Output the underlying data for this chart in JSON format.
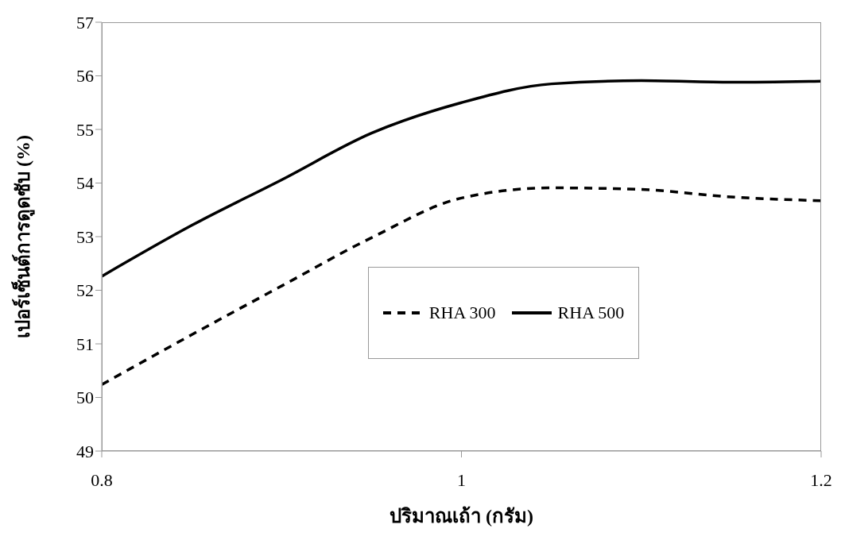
{
  "chart_data": {
    "type": "line",
    "xlabel": "ปริมาณเถ้า (กรัม)",
    "ylabel": "เปอร์เซ็นต์การดูดซับ (%)",
    "x": [
      0.8,
      0.85,
      0.9,
      0.95,
      1.0,
      1.05,
      1.1,
      1.15,
      1.2
    ],
    "series": [
      {
        "name": "RHA 300",
        "color": "#000000",
        "line_style": "dashed",
        "values": [
          50.24,
          51.17,
          52.08,
          52.98,
          53.72,
          53.91,
          53.88,
          53.74,
          53.67
        ]
      },
      {
        "name": "RHA 500",
        "color": "#000000",
        "line_style": "solid",
        "values": [
          52.26,
          53.21,
          54.06,
          54.93,
          55.5,
          55.85,
          55.91,
          55.88,
          55.9
        ]
      }
    ],
    "xlim": [
      0.8,
      1.2
    ],
    "xticks": [
      0.8,
      1,
      1.2
    ],
    "ylim": [
      49,
      57
    ],
    "yticks": [
      49,
      50,
      51,
      52,
      53,
      54,
      55,
      56,
      57
    ],
    "grid": false,
    "legend": "center",
    "marker": "none"
  }
}
